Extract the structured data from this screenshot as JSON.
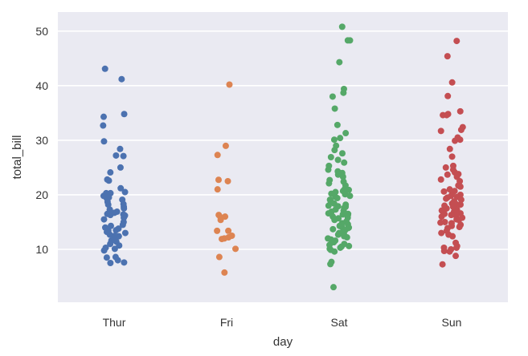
{
  "chart_data": {
    "type": "scatter",
    "subtype": "stripplot",
    "title": "",
    "xlabel": "day",
    "ylabel": "total_bill",
    "ylim": [
      0.3,
      53.5
    ],
    "yticks": [
      10,
      20,
      30,
      40,
      50
    ],
    "grid": true,
    "legend": "none",
    "categories": [
      "Thur",
      "Fri",
      "Sat",
      "Sun"
    ],
    "series": [
      {
        "name": "Thur",
        "color": "#4c72b0",
        "values": [
          43.1,
          41.2,
          34.8,
          34.3,
          32.7,
          29.8,
          28.4,
          27.2,
          27.1,
          25.0,
          24.1,
          22.8,
          22.6,
          21.2,
          20.5,
          20.3,
          20.3,
          19.8,
          19.5,
          19.4,
          19.1,
          18.7,
          18.3,
          18.2,
          17.8,
          17.5,
          17.3,
          16.9,
          16.7,
          16.5,
          16.4,
          16.3,
          16.2,
          16.0,
          15.8,
          15.5,
          15.0,
          14.5,
          14.3,
          14.0,
          13.8,
          13.5,
          13.4,
          13.2,
          13.0,
          12.7,
          12.5,
          12.4,
          12.3,
          12.0,
          11.6,
          11.4,
          11.0,
          10.7,
          10.3,
          10.1,
          9.8,
          8.6,
          8.5,
          8.0,
          7.6,
          7.5
        ]
      },
      {
        "name": "Fri",
        "color": "#dd8452",
        "values": [
          40.2,
          28.97,
          27.3,
          22.75,
          22.5,
          21.0,
          16.3,
          16.0,
          15.9,
          15.4,
          13.4,
          13.4,
          12.5,
          12.2,
          12.0,
          11.9,
          10.1,
          8.6,
          5.75
        ]
      },
      {
        "name": "Sat",
        "color": "#55a868",
        "values": [
          50.8,
          48.3,
          48.3,
          44.3,
          39.4,
          38.7,
          38.0,
          35.8,
          32.8,
          31.3,
          30.4,
          30.1,
          29.0,
          28.2,
          27.6,
          26.9,
          26.4,
          25.9,
          25.3,
          24.6,
          24.3,
          24.0,
          23.7,
          23.3,
          22.7,
          22.4,
          22.1,
          21.7,
          21.0,
          20.9,
          20.7,
          20.5,
          20.2,
          20.1,
          19.8,
          19.6,
          19.4,
          19.1,
          18.8,
          18.4,
          18.2,
          18.0,
          17.9,
          17.8,
          17.6,
          17.3,
          17.1,
          16.9,
          16.6,
          16.5,
          16.4,
          16.2,
          16.0,
          15.8,
          15.7,
          15.5,
          15.4,
          15.1,
          14.8,
          14.6,
          14.3,
          14.1,
          14.0,
          13.9,
          13.7,
          13.5,
          13.3,
          13.0,
          12.8,
          12.7,
          12.4,
          12.2,
          12.0,
          11.8,
          11.6,
          11.3,
          11.0,
          10.8,
          10.6,
          10.5,
          10.3,
          10.1,
          9.9,
          9.6,
          7.7,
          7.3,
          3.07
        ]
      },
      {
        "name": "Sun",
        "color": "#c44e52",
        "values": [
          48.2,
          45.4,
          40.6,
          38.1,
          35.3,
          34.8,
          34.6,
          34.6,
          32.4,
          31.9,
          31.7,
          30.5,
          30.1,
          29.9,
          28.4,
          27.0,
          25.3,
          25.0,
          24.6,
          24.1,
          23.8,
          23.7,
          23.3,
          22.8,
          22.5,
          21.7,
          21.5,
          21.0,
          20.7,
          20.6,
          20.3,
          20.0,
          19.8,
          19.6,
          19.5,
          19.3,
          19.1,
          18.8,
          18.4,
          18.3,
          18.2,
          18.0,
          17.8,
          17.6,
          17.5,
          17.3,
          17.1,
          16.9,
          16.6,
          16.5,
          16.3,
          16.2,
          16.0,
          15.8,
          15.5,
          15.4,
          15.0,
          14.9,
          14.8,
          14.5,
          14.3,
          14.1,
          13.9,
          13.4,
          13.0,
          12.7,
          12.4,
          11.2,
          10.6,
          10.3,
          10.3,
          10.0,
          9.7,
          9.6,
          8.8,
          7.25
        ]
      }
    ],
    "jitter": 0.1
  }
}
